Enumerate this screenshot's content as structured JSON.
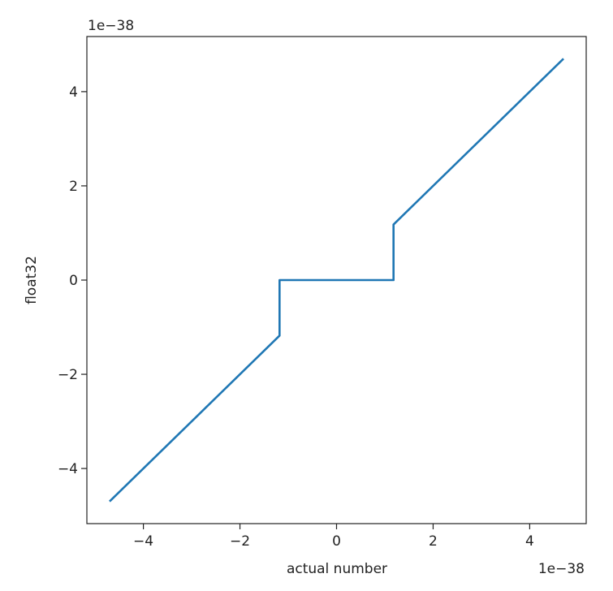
{
  "chart_data": {
    "type": "line",
    "x_label": "actual number",
    "y_label": "float32",
    "x_offset_label": "1e−38",
    "y_offset_label": "1e−38",
    "x": [
      -4.7,
      -1.18,
      -1.18,
      1.18,
      1.18,
      4.7
    ],
    "series": [
      {
        "color": "#1f77b4",
        "values": [
          -4.7,
          -1.18,
          0,
          0,
          1.18,
          4.7
        ]
      }
    ],
    "xlim": [
      -5.17,
      5.17
    ],
    "ylim": [
      -5.17,
      5.17
    ],
    "xticks": [
      {
        "value": -4,
        "label": "−4"
      },
      {
        "value": -2,
        "label": "−2"
      },
      0,
      2,
      4
    ],
    "yticks": [
      {
        "value": -4,
        "label": "−4"
      },
      {
        "value": -2,
        "label": "−2"
      },
      0,
      2,
      4
    ],
    "grid": false
  }
}
